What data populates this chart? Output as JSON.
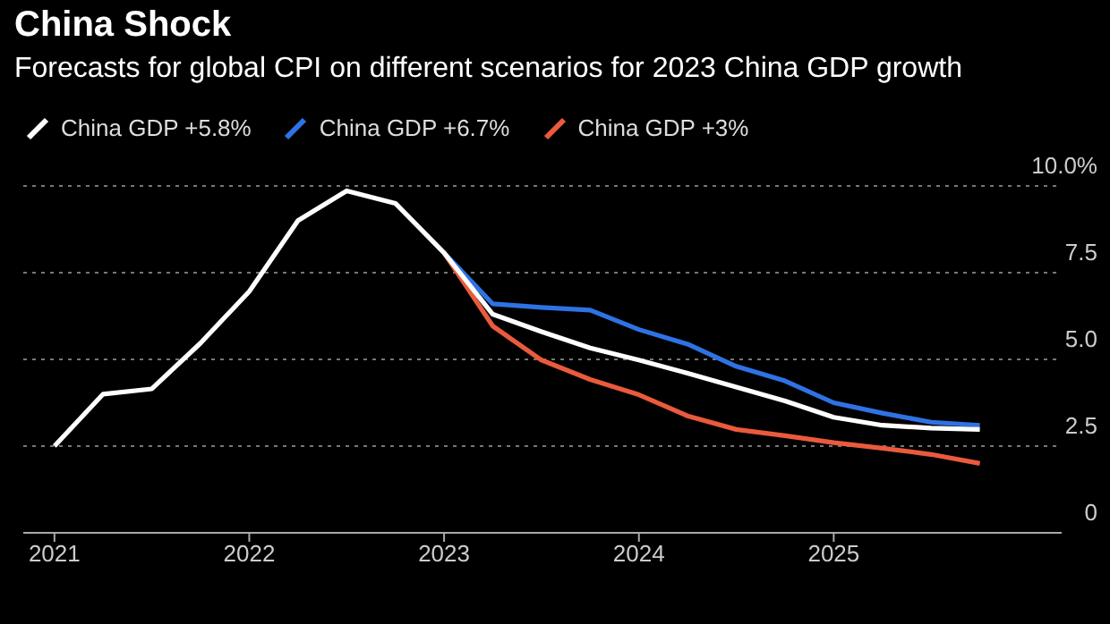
{
  "chart_data": {
    "type": "line",
    "title": "China Shock",
    "subtitle": "Forecasts for global CPI on different scenarios for 2023 China GDP growth",
    "x": [
      2021,
      2021.25,
      2021.5,
      2021.75,
      2022,
      2022.25,
      2022.5,
      2022.75,
      2023,
      2023.25,
      2023.5,
      2023.75,
      2024,
      2024.25,
      2024.5,
      2024.75,
      2025,
      2025.25,
      2025.5,
      2025.75
    ],
    "series": [
      {
        "name": "China GDP +5.8%",
        "color": "#ffffff",
        "values": [
          2.5,
          4.0,
          4.15,
          5.47,
          6.96,
          9.0,
          9.86,
          9.5,
          8.07,
          6.3,
          5.8,
          5.33,
          4.98,
          4.6,
          4.2,
          3.8,
          3.33,
          3.1,
          3.02,
          2.98
        ]
      },
      {
        "name": "China GDP +6.7%",
        "color": "#2f72e4",
        "values": [
          null,
          null,
          null,
          null,
          null,
          null,
          null,
          null,
          8.07,
          6.6,
          6.5,
          6.42,
          5.86,
          5.44,
          4.8,
          4.38,
          3.75,
          3.45,
          3.19,
          3.1
        ]
      },
      {
        "name": "China GDP +3%",
        "color": "#ea5a3c",
        "values": [
          null,
          null,
          null,
          null,
          null,
          null,
          null,
          null,
          8.07,
          5.96,
          4.98,
          4.42,
          3.98,
          3.37,
          2.98,
          2.8,
          2.6,
          2.44,
          2.26,
          2.0
        ]
      }
    ],
    "xlim": [
      2020.84,
      2026.17
    ],
    "xticks": [
      2021,
      2022,
      2023,
      2024,
      2025
    ],
    "ylim": [
      0,
      10
    ],
    "yticks": [
      0,
      2.5,
      {
        "value": 5,
        "label": "5.0"
      },
      7.5,
      {
        "value": 10,
        "label": "10.0%"
      }
    ],
    "grid": "y",
    "legend": "top left",
    "marker": "none",
    "line_style": "solid"
  }
}
